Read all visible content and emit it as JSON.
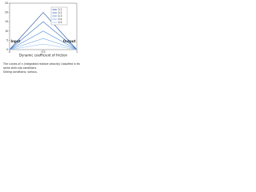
{
  "chart_data": {
    "type": "line",
    "x": [
      0,
      0.5,
      1.0
    ],
    "series": [
      {
        "name": "0.1",
        "color": "#1f4e9c",
        "values": [
          0,
          20,
          0
        ]
      },
      {
        "name": "0.2",
        "color": "#2f6fc0",
        "values": [
          0,
          15,
          0
        ]
      },
      {
        "name": "0.3",
        "color": "#4a8ad6",
        "values": [
          0,
          10,
          0
        ]
      },
      {
        "name": "0.4",
        "color": "#6fa6e2",
        "values": [
          0,
          6,
          0
        ]
      },
      {
        "name": "0.5",
        "color": "#9cc3ee",
        "values": [
          0,
          3,
          0
        ]
      }
    ],
    "xlim": [
      0,
      1.0
    ],
    "xticks": [
      0,
      0.5,
      1.0
    ],
    "ylim": [
      0,
      25
    ],
    "yticks": [
      0,
      5,
      10,
      15,
      20,
      25
    ],
    "xlabel": "Dynamic coefficient of friction",
    "annotations": [
      "Input",
      "Output"
    ],
    "caption": [
      "The curves of n (integrated relative velocity) classified in the",
      "same stick-slip conditions.",
      "Sliding conditions: various."
    ]
  }
}
